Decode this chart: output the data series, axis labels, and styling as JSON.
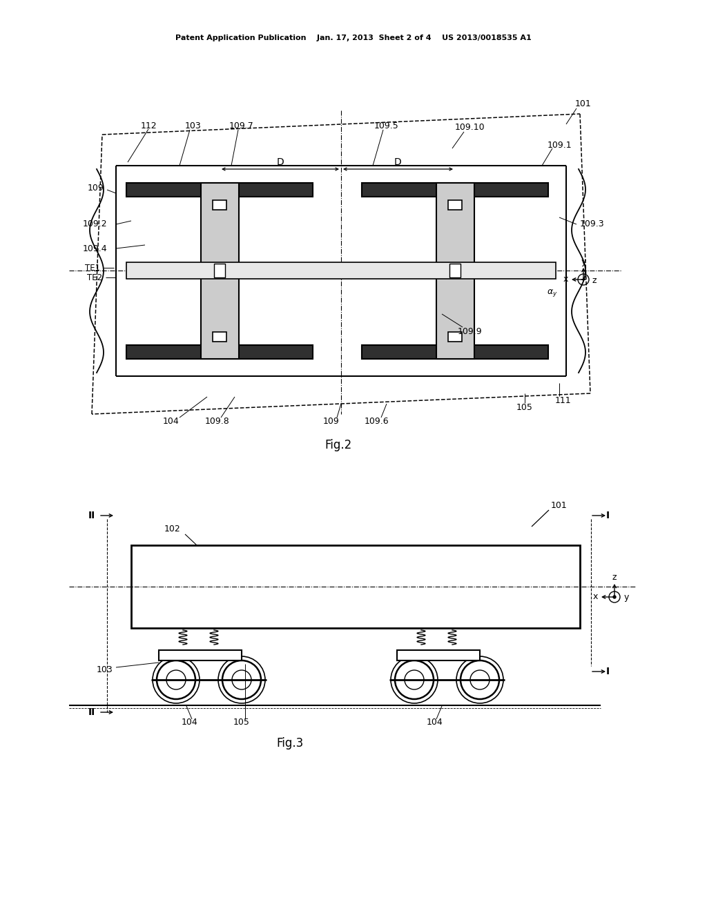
{
  "background_color": "#ffffff",
  "header_text": "Patent Application Publication    Jan. 17, 2013  Sheet 2 of 4    US 2013/0018535 A1",
  "fig2_caption": "Fig.2",
  "fig3_caption": "Fig.3"
}
